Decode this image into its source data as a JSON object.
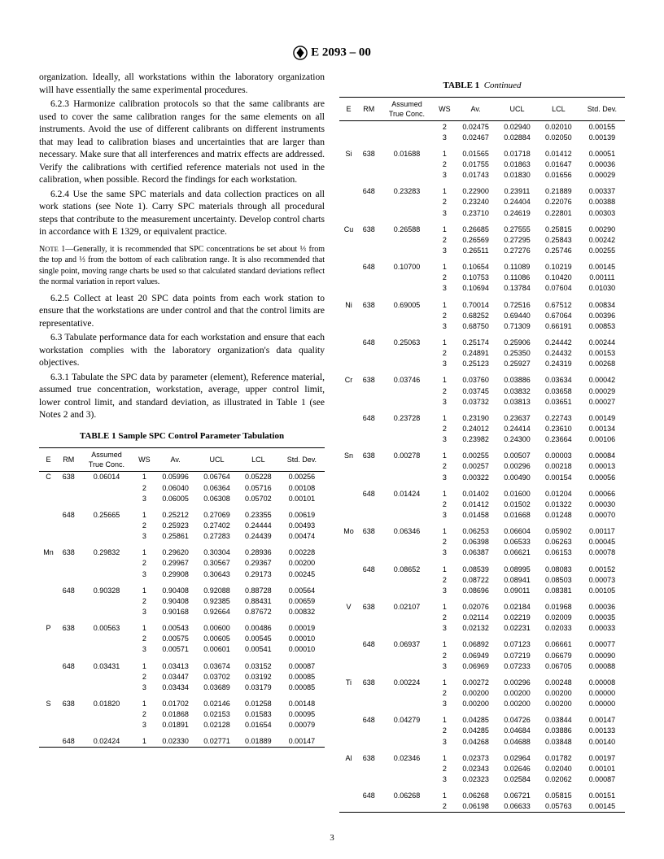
{
  "header": {
    "designation": "E 2093 – 00"
  },
  "body": {
    "p1": "organization. Ideally, all workstations within the laboratory organization will have essentially the same experimental procedures.",
    "p2": "6.2.3 Harmonize calibration protocols so that the same calibrants are used to cover the same calibration ranges for the same elements on all instruments. Avoid the use of different calibrants on different instruments that may lead to calibration biases and uncertainties that are larger than necessary. Make sure that all interferences and matrix effects are addressed. Verify the calibrations with certified reference materials not used in the calibration, when possible. Record the findings for each workstation.",
    "p3": "6.2.4 Use the same SPC materials and data collection practices on all work stations (see Note 1). Carry SPC materials through all procedural steps that contribute to the measurement uncertainty. Develop control charts in accordance with E 1329, or equivalent practice.",
    "note1": "Note 1—Generally, it is recommended that SPC concentrations be set about ⅓ from the top and ⅓ from the bottom of each calibration range. It is also recommended that single point, moving range charts be used so that calculated standard deviations reflect the normal variation in report values.",
    "p4": "6.2.5 Collect at least 20 SPC data points from each work station to ensure that the workstations are under control and that the control limits are representative.",
    "p5": "6.3 Tabulate performance data for each workstation and ensure that each workstation complies with the laboratory organization's data quality objectives.",
    "p6": "6.3.1 Tabulate the SPC data by parameter (element), Reference material, assumed true concentration, workstation, average, upper control limit, lower control limit, and standard deviation, as illustrated in Table 1 (see Notes 2 and 3)."
  },
  "table1": {
    "title": "TABLE 1  Sample SPC Control Parameter Tabulation",
    "cont": "TABLE 1",
    "cont2": "Continued",
    "cols": [
      "E",
      "RM",
      "Assumed\nTrue Conc.",
      "WS",
      "Av.",
      "UCL",
      "LCL",
      "Std. Dev."
    ],
    "left": [
      [
        "C",
        "638",
        "0.06014",
        "1",
        "0.05996",
        "0.06764",
        "0.05228",
        "0.00256"
      ],
      [
        "",
        "",
        "",
        "2",
        "0.06040",
        "0.06364",
        "0.05716",
        "0.00108"
      ],
      [
        "",
        "",
        "",
        "3",
        "0.06005",
        "0.06308",
        "0.05702",
        "0.00101"
      ],
      null,
      [
        "",
        "648",
        "0.25665",
        "1",
        "0.25212",
        "0.27069",
        "0.23355",
        "0.00619"
      ],
      [
        "",
        "",
        "",
        "2",
        "0.25923",
        "0.27402",
        "0.24444",
        "0.00493"
      ],
      [
        "",
        "",
        "",
        "3",
        "0.25861",
        "0.27283",
        "0.24439",
        "0.00474"
      ],
      null,
      [
        "Mn",
        "638",
        "0.29832",
        "1",
        "0.29620",
        "0.30304",
        "0.28936",
        "0.00228"
      ],
      [
        "",
        "",
        "",
        "2",
        "0.29967",
        "0.30567",
        "0.29367",
        "0.00200"
      ],
      [
        "",
        "",
        "",
        "3",
        "0.29908",
        "0.30643",
        "0.29173",
        "0.00245"
      ],
      null,
      [
        "",
        "648",
        "0.90328",
        "1",
        "0.90408",
        "0.92088",
        "0.88728",
        "0.00564"
      ],
      [
        "",
        "",
        "",
        "2",
        "0.90408",
        "0.92385",
        "0.88431",
        "0.00659"
      ],
      [
        "",
        "",
        "",
        "3",
        "0.90168",
        "0.92664",
        "0.87672",
        "0.00832"
      ],
      null,
      [
        "P",
        "638",
        "0.00563",
        "1",
        "0.00543",
        "0.00600",
        "0.00486",
        "0.00019"
      ],
      [
        "",
        "",
        "",
        "2",
        "0.00575",
        "0.00605",
        "0.00545",
        "0.00010"
      ],
      [
        "",
        "",
        "",
        "3",
        "0.00571",
        "0.00601",
        "0.00541",
        "0.00010"
      ],
      null,
      [
        "",
        "648",
        "0.03431",
        "1",
        "0.03413",
        "0.03674",
        "0.03152",
        "0.00087"
      ],
      [
        "",
        "",
        "",
        "2",
        "0.03447",
        "0.03702",
        "0.03192",
        "0.00085"
      ],
      [
        "",
        "",
        "",
        "3",
        "0.03434",
        "0.03689",
        "0.03179",
        "0.00085"
      ],
      null,
      [
        "S",
        "638",
        "0.01820",
        "1",
        "0.01702",
        "0.02146",
        "0.01258",
        "0.00148"
      ],
      [
        "",
        "",
        "",
        "2",
        "0.01868",
        "0.02153",
        "0.01583",
        "0.00095"
      ],
      [
        "",
        "",
        "",
        "3",
        "0.01891",
        "0.02128",
        "0.01654",
        "0.00079"
      ],
      null,
      [
        "",
        "648",
        "0.02424",
        "1",
        "0.02330",
        "0.02771",
        "0.01889",
        "0.00147"
      ]
    ],
    "right": [
      [
        "",
        "",
        "",
        "2",
        "0.02475",
        "0.02940",
        "0.02010",
        "0.00155"
      ],
      [
        "",
        "",
        "",
        "3",
        "0.02467",
        "0.02884",
        "0.02050",
        "0.00139"
      ],
      null,
      [
        "Si",
        "638",
        "0.01688",
        "1",
        "0.01565",
        "0.01718",
        "0.01412",
        "0.00051"
      ],
      [
        "",
        "",
        "",
        "2",
        "0.01755",
        "0.01863",
        "0.01647",
        "0.00036"
      ],
      [
        "",
        "",
        "",
        "3",
        "0.01743",
        "0.01830",
        "0.01656",
        "0.00029"
      ],
      null,
      [
        "",
        "648",
        "0.23283",
        "1",
        "0.22900",
        "0.23911",
        "0.21889",
        "0.00337"
      ],
      [
        "",
        "",
        "",
        "2",
        "0.23240",
        "0.24404",
        "0.22076",
        "0.00388"
      ],
      [
        "",
        "",
        "",
        "3",
        "0.23710",
        "0.24619",
        "0.22801",
        "0.00303"
      ],
      null,
      [
        "Cu",
        "638",
        "0.26588",
        "1",
        "0.26685",
        "0.27555",
        "0.25815",
        "0.00290"
      ],
      [
        "",
        "",
        "",
        "2",
        "0.26569",
        "0.27295",
        "0.25843",
        "0.00242"
      ],
      [
        "",
        "",
        "",
        "3",
        "0.26511",
        "0.27276",
        "0.25746",
        "0.00255"
      ],
      null,
      [
        "",
        "648",
        "0.10700",
        "1",
        "0.10654",
        "0.11089",
        "0.10219",
        "0.00145"
      ],
      [
        "",
        "",
        "",
        "2",
        "0.10753",
        "0.11086",
        "0.10420",
        "0.00111"
      ],
      [
        "",
        "",
        "",
        "3",
        "0.10694",
        "0.13784",
        "0.07604",
        "0.01030"
      ],
      null,
      [
        "Ni",
        "638",
        "0.69005",
        "1",
        "0.70014",
        "0.72516",
        "0.67512",
        "0.00834"
      ],
      [
        "",
        "",
        "",
        "2",
        "0.68252",
        "0.69440",
        "0.67064",
        "0.00396"
      ],
      [
        "",
        "",
        "",
        "3",
        "0.68750",
        "0.71309",
        "0.66191",
        "0.00853"
      ],
      null,
      [
        "",
        "648",
        "0.25063",
        "1",
        "0.25174",
        "0.25906",
        "0.24442",
        "0.00244"
      ],
      [
        "",
        "",
        "",
        "2",
        "0.24891",
        "0.25350",
        "0.24432",
        "0.00153"
      ],
      [
        "",
        "",
        "",
        "3",
        "0.25123",
        "0.25927",
        "0.24319",
        "0.00268"
      ],
      null,
      [
        "Cr",
        "638",
        "0.03746",
        "1",
        "0.03760",
        "0.03886",
        "0.03634",
        "0.00042"
      ],
      [
        "",
        "",
        "",
        "2",
        "0.03745",
        "0.03832",
        "0.03658",
        "0.00029"
      ],
      [
        "",
        "",
        "",
        "3",
        "0.03732",
        "0.03813",
        "0.03651",
        "0.00027"
      ],
      null,
      [
        "",
        "648",
        "0.23728",
        "1",
        "0.23190",
        "0.23637",
        "0.22743",
        "0.00149"
      ],
      [
        "",
        "",
        "",
        "2",
        "0.24012",
        "0.24414",
        "0.23610",
        "0.00134"
      ],
      [
        "",
        "",
        "",
        "3",
        "0.23982",
        "0.24300",
        "0.23664",
        "0.00106"
      ],
      null,
      [
        "Sn",
        "638",
        "0.00278",
        "1",
        "0.00255",
        "0.00507",
        "0.00003",
        "0.00084"
      ],
      [
        "",
        "",
        "",
        "2",
        "0.00257",
        "0.00296",
        "0.00218",
        "0.00013"
      ],
      [
        "",
        "",
        "",
        "3",
        "0.00322",
        "0.00490",
        "0.00154",
        "0.00056"
      ],
      null,
      [
        "",
        "648",
        "0.01424",
        "1",
        "0.01402",
        "0.01600",
        "0.01204",
        "0.00066"
      ],
      [
        "",
        "",
        "",
        "2",
        "0.01412",
        "0.01502",
        "0.01322",
        "0.00030"
      ],
      [
        "",
        "",
        "",
        "3",
        "0.01458",
        "0.01668",
        "0.01248",
        "0.00070"
      ],
      null,
      [
        "Mo",
        "638",
        "0.06346",
        "1",
        "0.06253",
        "0.06604",
        "0.05902",
        "0.00117"
      ],
      [
        "",
        "",
        "",
        "2",
        "0.06398",
        "0.06533",
        "0.06263",
        "0.00045"
      ],
      [
        "",
        "",
        "",
        "3",
        "0.06387",
        "0.06621",
        "0.06153",
        "0.00078"
      ],
      null,
      [
        "",
        "648",
        "0.08652",
        "1",
        "0.08539",
        "0.08995",
        "0.08083",
        "0.00152"
      ],
      [
        "",
        "",
        "",
        "2",
        "0.08722",
        "0.08941",
        "0.08503",
        "0.00073"
      ],
      [
        "",
        "",
        "",
        "3",
        "0.08696",
        "0.09011",
        "0.08381",
        "0.00105"
      ],
      null,
      [
        "V",
        "638",
        "0.02107",
        "1",
        "0.02076",
        "0.02184",
        "0.01968",
        "0.00036"
      ],
      [
        "",
        "",
        "",
        "2",
        "0.02114",
        "0.02219",
        "0.02009",
        "0.00035"
      ],
      [
        "",
        "",
        "",
        "3",
        "0.02132",
        "0.02231",
        "0.02033",
        "0.00033"
      ],
      null,
      [
        "",
        "648",
        "0.06937",
        "1",
        "0.06892",
        "0.07123",
        "0.06661",
        "0.00077"
      ],
      [
        "",
        "",
        "",
        "2",
        "0.06949",
        "0.07219",
        "0.06679",
        "0.00090"
      ],
      [
        "",
        "",
        "",
        "3",
        "0.06969",
        "0.07233",
        "0.06705",
        "0.00088"
      ],
      null,
      [
        "Ti",
        "638",
        "0.00224",
        "1",
        "0.00272",
        "0.00296",
        "0.00248",
        "0.00008"
      ],
      [
        "",
        "",
        "",
        "2",
        "0.00200",
        "0.00200",
        "0.00200",
        "0.00000"
      ],
      [
        "",
        "",
        "",
        "3",
        "0.00200",
        "0.00200",
        "0.00200",
        "0.00000"
      ],
      null,
      [
        "",
        "648",
        "0.04279",
        "1",
        "0.04285",
        "0.04726",
        "0.03844",
        "0.00147"
      ],
      [
        "",
        "",
        "",
        "2",
        "0.04285",
        "0.04684",
        "0.03886",
        "0.00133"
      ],
      [
        "",
        "",
        "",
        "3",
        "0.04268",
        "0.04688",
        "0.03848",
        "0.00140"
      ],
      null,
      [
        "Al",
        "638",
        "0.02346",
        "1",
        "0.02373",
        "0.02964",
        "0.01782",
        "0.00197"
      ],
      [
        "",
        "",
        "",
        "2",
        "0.02343",
        "0.02646",
        "0.02040",
        "0.00101"
      ],
      [
        "",
        "",
        "",
        "3",
        "0.02323",
        "0.02584",
        "0.02062",
        "0.00087"
      ],
      null,
      [
        "",
        "648",
        "0.06268",
        "1",
        "0.06268",
        "0.06721",
        "0.05815",
        "0.00151"
      ],
      [
        "",
        "",
        "",
        "2",
        "0.06198",
        "0.06633",
        "0.05763",
        "0.00145"
      ]
    ]
  },
  "page": "3"
}
